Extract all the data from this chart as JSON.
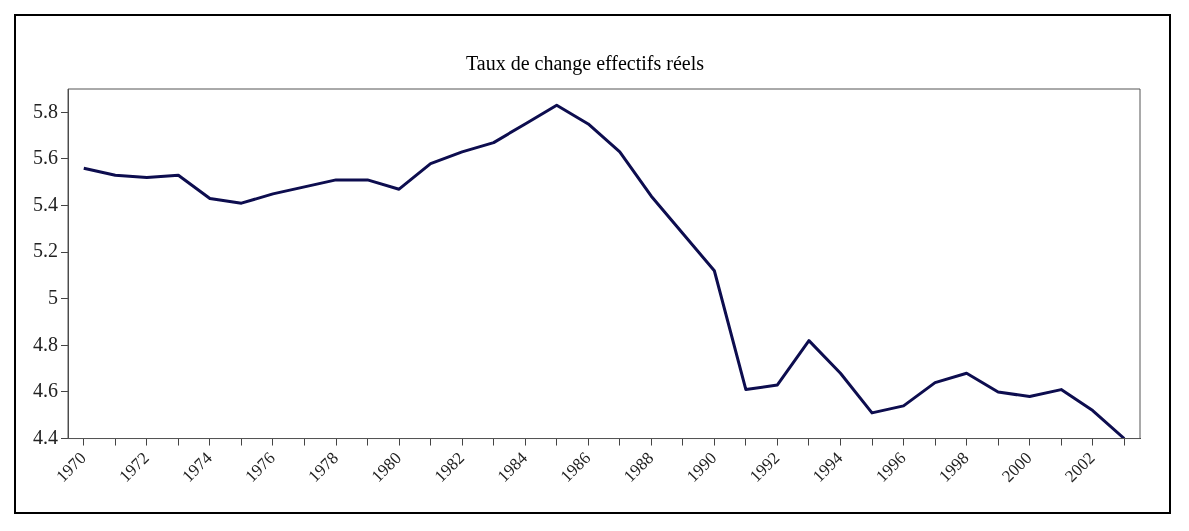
{
  "chart_data": {
    "type": "line",
    "title": "Taux de change effectifs réels",
    "categories": [
      "1970",
      null,
      "1972",
      null,
      "1974",
      null,
      "1976",
      null,
      "1978",
      null,
      "1980",
      null,
      "1982",
      null,
      "1984",
      null,
      "1986",
      null,
      "1988",
      null,
      "1990",
      null,
      "1992",
      null,
      "1994",
      null,
      "1996",
      null,
      "1998",
      null,
      "2000",
      null,
      "2002",
      null
    ],
    "series": [
      {
        "color": "#0d0d4f",
        "values": [
          5.56,
          5.53,
          5.52,
          5.53,
          5.43,
          5.41,
          5.45,
          5.48,
          5.51,
          5.51,
          5.47,
          5.58,
          5.63,
          5.67,
          5.75,
          5.83,
          5.75,
          5.63,
          5.44,
          5.28,
          5.12,
          4.61,
          4.63,
          4.82,
          4.68,
          4.51,
          4.54,
          4.64,
          4.68,
          4.6,
          4.58,
          4.61,
          4.52,
          4.4
        ]
      }
    ],
    "ylim": [
      4.4,
      5.9
    ],
    "yticks": [
      4.4,
      4.6,
      4.8,
      5,
      5.2,
      5.4,
      5.6,
      5.8
    ],
    "grid": false,
    "legend": false,
    "marker": "none",
    "line_style": "solid"
  }
}
